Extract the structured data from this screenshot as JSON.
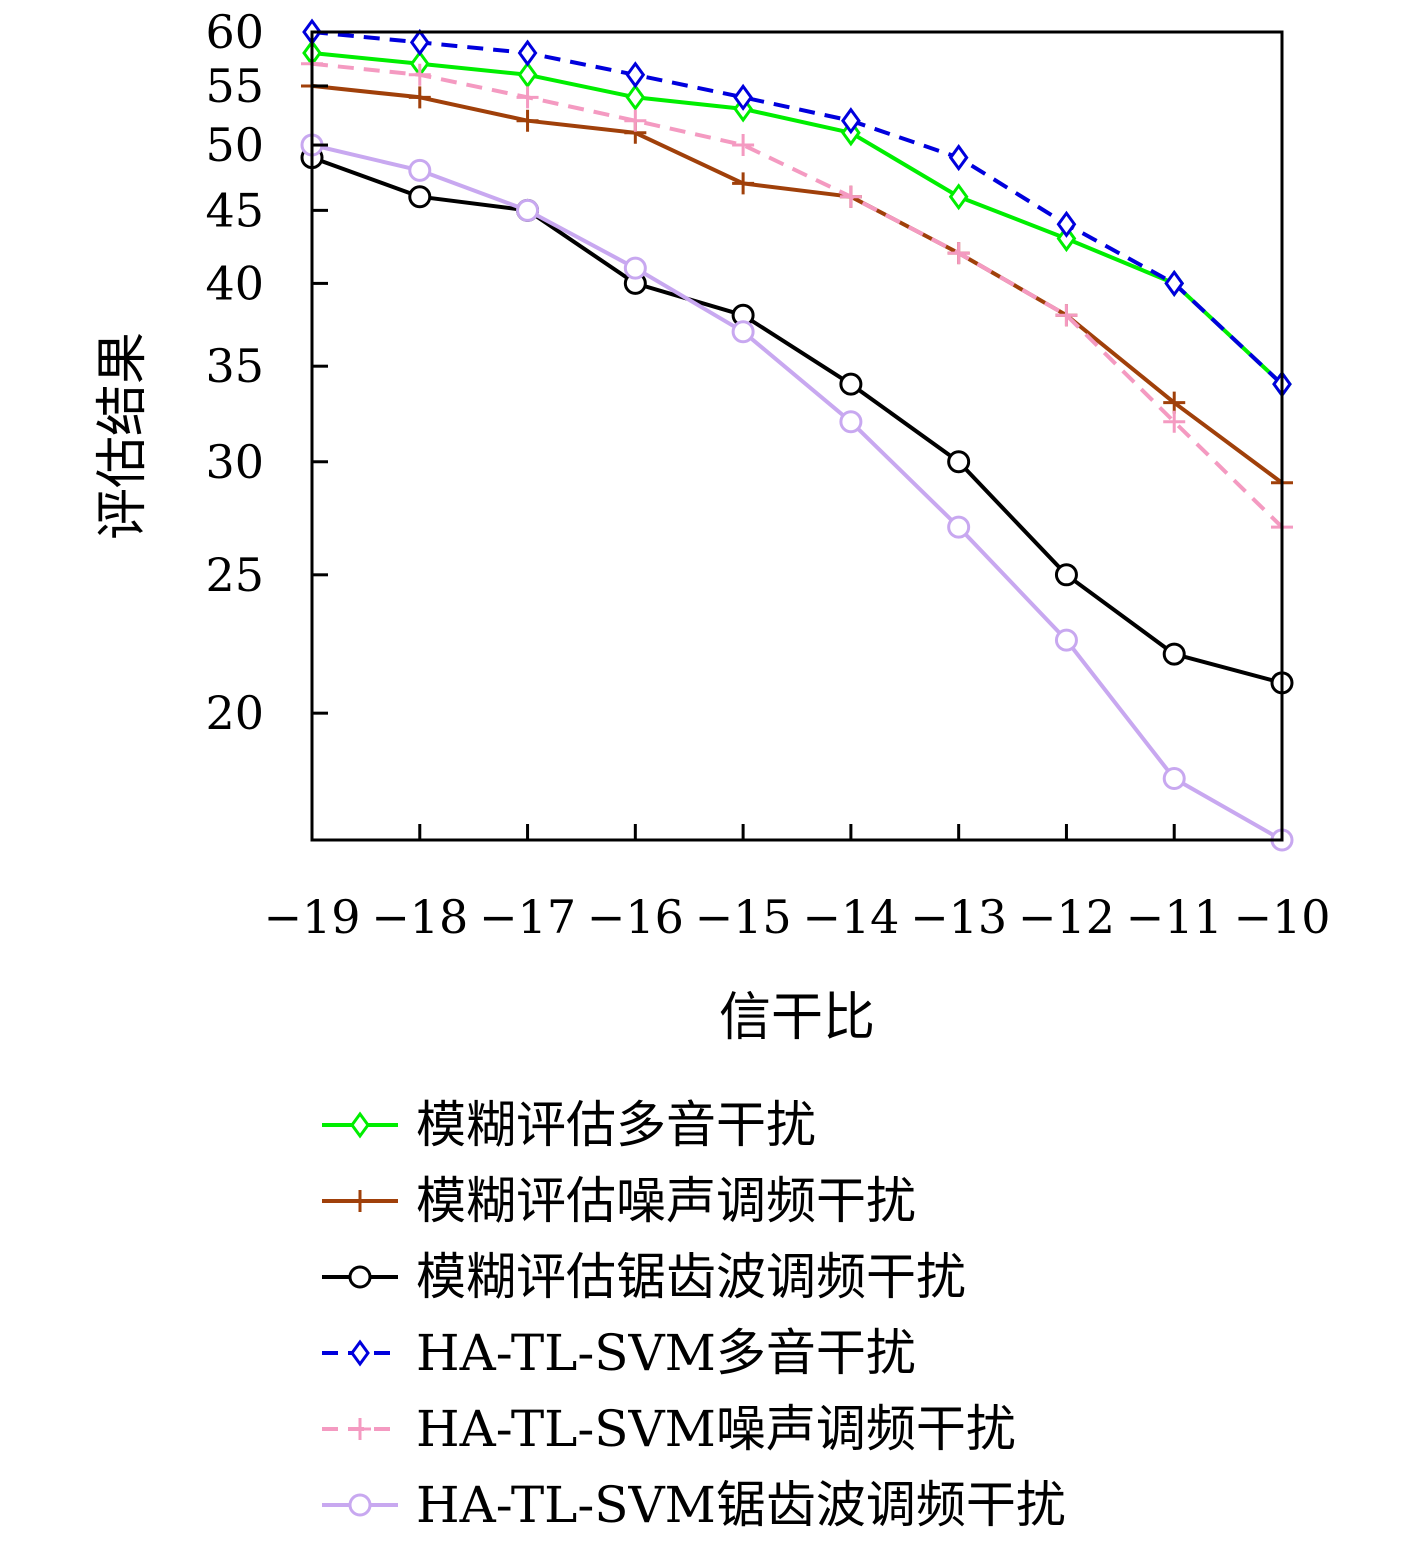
{
  "chart_data": {
    "type": "line",
    "xlabel": "信干比",
    "ylabel": "评估结果",
    "x": [
      -19,
      -18,
      -17,
      -16,
      -15,
      -14,
      -13,
      -12,
      -11,
      -10
    ],
    "x_tick_labels": [
      "−19",
      "−18",
      "−17",
      "−16",
      "−15",
      "−14",
      "−13",
      "−12",
      "−11",
      "−10"
    ],
    "xlim": [
      -19,
      -10
    ],
    "y_scale": "log",
    "ylim": [
      16.3,
      60
    ],
    "y_ticks": [
      20,
      25,
      30,
      35,
      40,
      45,
      50,
      55,
      60
    ],
    "grid": false,
    "legend_position": "bottom",
    "series": [
      {
        "name": "模糊评估多音干扰",
        "color": "#00ee00",
        "dash": "solid",
        "marker": "diamond",
        "values": [
          58,
          57,
          56,
          54,
          53,
          51,
          46,
          43,
          40,
          34
        ]
      },
      {
        "name": "模糊评估噪声调频干扰",
        "color": "#a0400a",
        "dash": "solid",
        "marker": "plus",
        "values": [
          55,
          54,
          52,
          51,
          47,
          46,
          42,
          38,
          33,
          29
        ]
      },
      {
        "name": "模糊评估锯齿波调频干扰",
        "color": "#000000",
        "dash": "solid",
        "marker": "circle",
        "values": [
          49,
          46,
          45,
          40,
          38,
          34,
          30,
          25,
          22,
          21
        ]
      },
      {
        "name": "HA-TL-SVM多音干扰",
        "color": "#0000dd",
        "dash": "dashed",
        "marker": "diamond",
        "values": [
          60,
          59,
          58,
          56,
          54,
          52,
          49,
          44,
          40,
          34
        ]
      },
      {
        "name": "HA-TL-SVM噪声调频干扰",
        "color": "#f49ac1",
        "dash": "dashed",
        "marker": "plus",
        "values": [
          57,
          56,
          54,
          52,
          50,
          46,
          42,
          38,
          32,
          27
        ]
      },
      {
        "name": "HA-TL-SVM锯齿波调频干扰",
        "color": "#c8a8f0",
        "dash": "solid",
        "marker": "circle",
        "values": [
          50,
          48,
          45,
          41,
          37,
          32,
          27,
          22.5,
          18,
          16.3
        ]
      }
    ]
  }
}
